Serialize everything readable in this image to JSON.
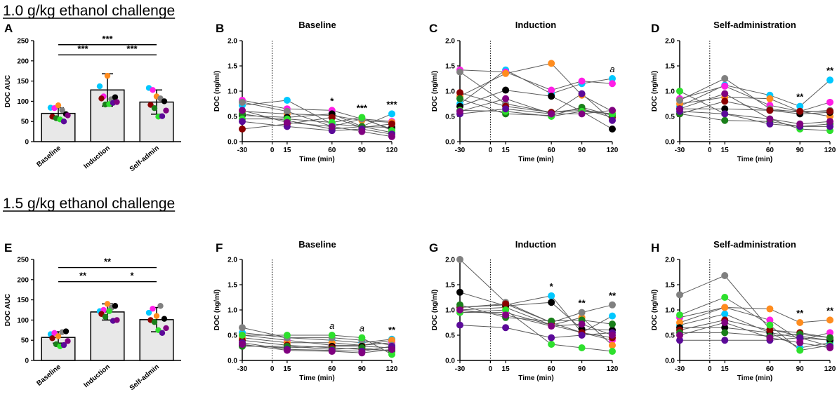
{
  "sections": [
    {
      "title": "1.0 g/kg ethanol challenge"
    },
    {
      "title": "1.5 g/kg ethanol challenge"
    }
  ],
  "colors": {
    "subjects": [
      "#00c8ff",
      "#ff1ee6",
      "#ff8c1e",
      "#808080",
      "#000000",
      "#8b0000",
      "#1a7f1a",
      "#2de02d",
      "#5b0a99",
      "#800080"
    ]
  },
  "chart_data": [
    {
      "id": "A",
      "type": "bar",
      "title": "",
      "ylabel": "DOC AUC",
      "xlabel": "",
      "ylim": [
        0,
        250
      ],
      "yticks": [
        0,
        50,
        100,
        150,
        200,
        250
      ],
      "categories": [
        "Baseline",
        "Induction",
        "Self-admin"
      ],
      "means": [
        70,
        128,
        98
      ],
      "sd": [
        14,
        40,
        30
      ],
      "points": [
        [
          84,
          83,
          90,
          78,
          68,
          62,
          58,
          55,
          50,
          65
        ],
        [
          137,
          112,
          163,
          105,
          110,
          107,
          92,
          93,
          96,
          98
        ],
        [
          133,
          128,
          112,
          107,
          100,
          91,
          83,
          62,
          63,
          77
        ]
      ],
      "comparisons": [
        {
          "from": 0,
          "to": 2,
          "label": "***",
          "y": 240
        },
        {
          "from": 0,
          "to": 1,
          "label": "***",
          "y": 215
        },
        {
          "from": 1,
          "to": 2,
          "label": "***",
          "y": 215
        }
      ]
    },
    {
      "id": "B",
      "type": "line",
      "title": "Baseline",
      "xlabel": "Time (min)",
      "ylabel": "DOC (ng/ml)",
      "x": [
        -30,
        15,
        60,
        90,
        120
      ],
      "xticks": [
        -30,
        0,
        15,
        60,
        90,
        120
      ],
      "ylim": [
        0,
        2.0
      ],
      "yticks": [
        "0.0",
        "0.5",
        "1.0",
        "1.5",
        "2.0"
      ],
      "injection_line": 0,
      "series": [
        {
          "values": [
            0.72,
            0.82,
            0.35,
            0.3,
            0.55
          ]
        },
        {
          "values": [
            0.82,
            0.65,
            0.62,
            0.45,
            0.4
          ]
        },
        {
          "values": [
            0.6,
            0.55,
            0.52,
            0.42,
            0.38
          ]
        },
        {
          "values": [
            0.78,
            0.6,
            0.3,
            0.45,
            0.25
          ]
        },
        {
          "values": [
            0.52,
            0.48,
            0.55,
            0.3,
            0.28
          ]
        },
        {
          "values": [
            0.25,
            0.35,
            0.48,
            0.28,
            0.35
          ]
        },
        {
          "values": [
            0.55,
            0.42,
            0.25,
            0.3,
            0.18
          ]
        },
        {
          "values": [
            0.45,
            0.45,
            0.38,
            0.48,
            0.22
          ]
        },
        {
          "values": [
            0.4,
            0.3,
            0.22,
            0.25,
            0.15
          ]
        },
        {
          "values": [
            0.62,
            0.38,
            0.3,
            0.2,
            0.1
          ]
        }
      ],
      "annotations": [
        {
          "x": 60,
          "label": "*",
          "italic": false
        },
        {
          "x": 90,
          "label": "***",
          "italic": false
        },
        {
          "x": 120,
          "label": "***",
          "italic": false
        }
      ]
    },
    {
      "id": "C",
      "type": "line",
      "title": "Induction",
      "xlabel": "Time (min)",
      "ylabel": "DOC (ng/ml)",
      "x": [
        -30,
        15,
        60,
        90,
        120
      ],
      "xticks": [
        -30,
        0,
        15,
        60,
        90,
        120
      ],
      "ylim": [
        0,
        2.0
      ],
      "yticks": [
        "0.0",
        "0.5",
        "1.0",
        "1.5",
        "2.0"
      ],
      "injection_line": 0,
      "series": [
        {
          "values": [
            0.75,
            1.42,
            0.95,
            1.15,
            1.25
          ]
        },
        {
          "values": [
            1.42,
            1.38,
            1.02,
            1.2,
            1.15
          ]
        },
        {
          "values": [
            0.9,
            1.35,
            1.55,
            0.92,
            0.6
          ]
        },
        {
          "values": [
            1.38,
            0.75,
            0.58,
            0.62,
            0.55
          ]
        },
        {
          "values": [
            0.7,
            1.02,
            0.9,
            0.6,
            0.25
          ]
        },
        {
          "values": [
            0.97,
            0.7,
            0.58,
            0.65,
            0.48
          ]
        },
        {
          "values": [
            0.85,
            0.55,
            0.52,
            0.68,
            0.52
          ]
        },
        {
          "values": [
            0.62,
            0.6,
            0.5,
            0.6,
            0.55
          ]
        },
        {
          "values": [
            0.55,
            0.65,
            0.55,
            0.95,
            0.42
          ]
        },
        {
          "values": [
            0.6,
            0.85,
            0.55,
            0.55,
            0.62
          ]
        }
      ],
      "annotations": [
        {
          "x": 120,
          "label": "a",
          "italic": true
        }
      ]
    },
    {
      "id": "D",
      "type": "line",
      "title": "Self-administration",
      "xlabel": "Time (min)",
      "ylabel": "DOC (ng/ml)",
      "x": [
        -30,
        15,
        60,
        90,
        120
      ],
      "xticks": [
        -30,
        0,
        15,
        60,
        90,
        120
      ],
      "ylim": [
        0,
        2.0
      ],
      "yticks": [
        "0.0",
        "0.5",
        "1.0",
        "1.5",
        "2.0"
      ],
      "injection_line": 0,
      "series": [
        {
          "values": [
            0.7,
            1.12,
            0.92,
            0.7,
            1.22
          ]
        },
        {
          "values": [
            0.85,
            1.1,
            0.72,
            0.6,
            0.78
          ]
        },
        {
          "values": [
            0.75,
            0.88,
            0.85,
            0.6,
            0.5
          ]
        },
        {
          "values": [
            0.82,
            1.25,
            0.65,
            0.58,
            0.62
          ]
        },
        {
          "values": [
            0.65,
            0.65,
            0.62,
            0.55,
            0.58
          ]
        },
        {
          "values": [
            0.55,
            0.8,
            0.62,
            0.6,
            0.6
          ]
        },
        {
          "values": [
            0.55,
            0.42,
            0.4,
            0.3,
            0.35
          ]
        },
        {
          "values": [
            1.0,
            0.55,
            0.45,
            0.25,
            0.22
          ]
        },
        {
          "values": [
            0.6,
            0.55,
            0.35,
            0.3,
            0.3
          ]
        },
        {
          "values": [
            0.65,
            0.95,
            0.45,
            0.35,
            0.4
          ]
        }
      ],
      "annotations": [
        {
          "x": 90,
          "label": "**",
          "italic": false
        },
        {
          "x": 120,
          "label": "**",
          "italic": false
        }
      ]
    },
    {
      "id": "E",
      "type": "bar",
      "title": "",
      "ylabel": "DOC AUC",
      "xlabel": "",
      "ylim": [
        0,
        250
      ],
      "yticks": [
        0,
        50,
        100,
        150,
        200,
        250
      ],
      "categories": [
        "Baseline",
        "Induction",
        "Self-admin"
      ],
      "means": [
        57,
        120,
        101
      ],
      "sd": [
        14,
        20,
        30
      ],
      "points": [
        [
          65,
          68,
          60,
          70,
          72,
          55,
          40,
          35,
          38,
          48
        ],
        [
          122,
          125,
          140,
          130,
          135,
          115,
          108,
          122,
          98,
          100
        ],
        [
          118,
          128,
          110,
          135,
          103,
          100,
          95,
          75,
          68,
          80
        ]
      ],
      "comparisons": [
        {
          "from": 0,
          "to": 2,
          "label": "**",
          "y": 230
        },
        {
          "from": 0,
          "to": 1,
          "label": "**",
          "y": 195
        },
        {
          "from": 1,
          "to": 2,
          "label": "*",
          "y": 195
        }
      ]
    },
    {
      "id": "F",
      "type": "line",
      "title": "Baseline",
      "xlabel": "Time (min)",
      "ylabel": "DOC (ng/ml)",
      "x": [
        -30,
        15,
        60,
        90,
        120
      ],
      "xticks": [
        -30,
        0,
        15,
        60,
        90,
        120
      ],
      "ylim": [
        0,
        2.0
      ],
      "yticks": [
        "0.0",
        "0.5",
        "1.0",
        "1.5",
        "2.0"
      ],
      "injection_line": 0,
      "series": [
        {
          "values": [
            0.55,
            0.45,
            0.4,
            0.35,
            0.42
          ]
        },
        {
          "values": [
            0.5,
            0.4,
            0.3,
            0.3,
            0.35
          ]
        },
        {
          "values": [
            0.45,
            0.35,
            0.35,
            0.3,
            0.4
          ]
        },
        {
          "values": [
            0.65,
            0.45,
            0.45,
            0.4,
            0.3
          ]
        },
        {
          "values": [
            0.3,
            0.25,
            0.28,
            0.28,
            0.25
          ]
        },
        {
          "values": [
            0.4,
            0.3,
            0.25,
            0.22,
            0.2
          ]
        },
        {
          "values": [
            0.28,
            0.28,
            0.22,
            0.25,
            0.18
          ]
        },
        {
          "values": [
            0.5,
            0.5,
            0.5,
            0.45,
            0.12
          ]
        },
        {
          "values": [
            0.35,
            0.22,
            0.2,
            0.18,
            0.28
          ]
        },
        {
          "values": [
            0.32,
            0.2,
            0.18,
            0.15,
            0.22
          ]
        }
      ],
      "annotations": [
        {
          "x": 60,
          "label": "a",
          "italic": true
        },
        {
          "x": 90,
          "label": "a",
          "italic": true
        },
        {
          "x": 120,
          "label": "**",
          "italic": false
        }
      ]
    },
    {
      "id": "G",
      "type": "line",
      "title": "Induction",
      "xlabel": "Time (min)",
      "ylabel": "DOC (ng/ml)",
      "x": [
        -30,
        15,
        60,
        90,
        120
      ],
      "xticks": [
        -30,
        0,
        15,
        60,
        90,
        120
      ],
      "ylim": [
        0,
        2.0
      ],
      "yticks": [
        "0.0",
        "0.5",
        "1.0",
        "1.5",
        "2.0"
      ],
      "injection_line": 0,
      "series": [
        {
          "values": [
            1.05,
            1.1,
            1.28,
            0.55,
            0.88
          ]
        },
        {
          "values": [
            0.95,
            0.95,
            0.7,
            0.55,
            0.4
          ]
        },
        {
          "values": [
            1.0,
            1.05,
            0.7,
            0.85,
            0.3
          ]
        },
        {
          "values": [
            2.0,
            1.15,
            0.75,
            0.95,
            1.1
          ]
        },
        {
          "values": [
            1.35,
            1.08,
            1.15,
            0.62,
            0.6
          ]
        },
        {
          "values": [
            1.05,
            1.12,
            0.75,
            0.55,
            0.45
          ]
        },
        {
          "values": [
            1.1,
            0.85,
            0.78,
            0.8,
            0.72
          ]
        },
        {
          "values": [
            0.95,
            1.0,
            0.32,
            0.25,
            0.18
          ]
        },
        {
          "values": [
            0.7,
            0.65,
            0.45,
            0.5,
            0.55
          ]
        },
        {
          "values": [
            1.0,
            0.9,
            0.68,
            0.72,
            0.5
          ]
        }
      ],
      "annotations": [
        {
          "x": 60,
          "label": "*",
          "italic": false
        },
        {
          "x": 90,
          "label": "**",
          "italic": false
        },
        {
          "x": 120,
          "label": "**",
          "italic": false
        }
      ]
    },
    {
      "id": "H",
      "type": "line",
      "title": "Self-administration",
      "xlabel": "Time (min)",
      "ylabel": "DOC (ng/ml)",
      "x": [
        -30,
        15,
        60,
        90,
        120
      ],
      "xticks": [
        -30,
        0,
        15,
        60,
        90,
        120
      ],
      "ylim": [
        0,
        2.0
      ],
      "yticks": [
        "0.0",
        "0.5",
        "1.0",
        "1.5",
        "2.0"
      ],
      "injection_line": 0,
      "series": [
        {
          "values": [
            0.7,
            0.92,
            0.55,
            0.25,
            0.35
          ]
        },
        {
          "values": [
            0.85,
            1.05,
            0.8,
            0.4,
            0.55
          ]
        },
        {
          "values": [
            0.75,
            1.05,
            1.02,
            0.75,
            0.8
          ]
        },
        {
          "values": [
            1.3,
            1.68,
            0.62,
            0.48,
            0.4
          ]
        },
        {
          "values": [
            0.65,
            0.65,
            0.55,
            0.45,
            0.4
          ]
        },
        {
          "values": [
            0.6,
            0.8,
            0.6,
            0.55,
            0.45
          ]
        },
        {
          "values": [
            0.55,
            0.55,
            0.48,
            0.52,
            0.45
          ]
        },
        {
          "values": [
            0.9,
            1.25,
            0.7,
            0.2,
            0.3
          ]
        },
        {
          "values": [
            0.4,
            0.4,
            0.4,
            0.45,
            0.28
          ]
        },
        {
          "values": [
            0.5,
            0.75,
            0.45,
            0.35,
            0.25
          ]
        }
      ],
      "annotations": [
        {
          "x": 90,
          "label": "**",
          "italic": false
        },
        {
          "x": 120,
          "label": "**",
          "italic": false
        }
      ]
    }
  ]
}
